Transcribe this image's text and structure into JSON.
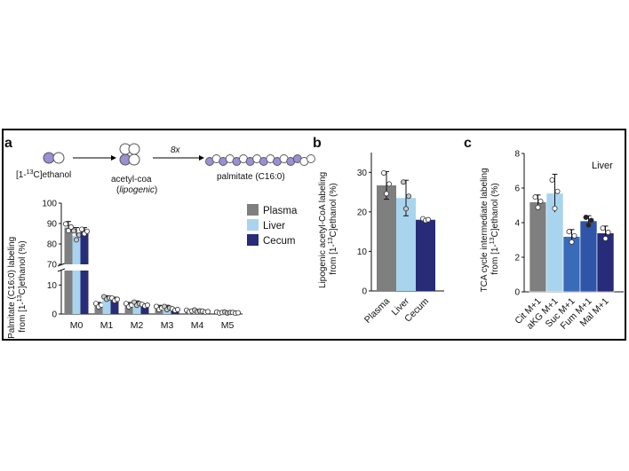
{
  "panel_labels": {
    "a": "a",
    "b": "b",
    "c": "c"
  },
  "colors": {
    "plasma": "#7f7f7f",
    "liver": "#a8d4ee",
    "cecum": "#272b78",
    "atom_labeled": "#9b8fd6"
  },
  "pathway": {
    "ethanol_label": "[1-",
    "ethanol_sup": "13",
    "ethanol_rest": "C]ethanol",
    "acetylcoa_label": "acetyl-coa",
    "acetylcoa_sub": "(lipogenic)",
    "factor_label": "8x",
    "palmitate_label": "palmitate (C16:0)"
  },
  "chart_data": [
    {
      "type": "bar",
      "ylabel_line1": "Palmitate (C16:0) labeling",
      "ylabel_line2_pre": "from [1-",
      "ylabel_line2_sup": "13",
      "ylabel_line2_post": "C]ethanol (%)",
      "categories": [
        "M0",
        "M1",
        "M2",
        "M3",
        "M4",
        "M5"
      ],
      "y_break": {
        "lower": [
          0,
          15
        ],
        "upper": [
          70,
          100
        ]
      },
      "yticks": [
        "0",
        "10",
        "70",
        "80",
        "90",
        "100"
      ],
      "legend_position": "right",
      "series": [
        {
          "name": "Plasma",
          "values": [
            88,
            3,
            3,
            2,
            1,
            0.5
          ],
          "err": [
            3,
            1,
            1,
            1,
            0.5,
            0.3
          ]
        },
        {
          "name": "Liver",
          "values": [
            84,
            5.5,
            3.5,
            2,
            1,
            0.5
          ],
          "err": [
            4,
            0.8,
            1,
            1,
            0.6,
            0.3
          ]
        },
        {
          "name": "Cecum",
          "values": [
            86,
            5,
            3,
            1.5,
            0.8,
            0.4
          ],
          "err": [
            2,
            0.8,
            0.5,
            0.5,
            0.3,
            0.2
          ]
        }
      ]
    },
    {
      "type": "bar",
      "ylabel_line1": "Lipogenic acetyl-CoA labeling",
      "ylabel_line2_pre": "from [1-",
      "ylabel_line2_sup": "13",
      "ylabel_line2_post": "C]ethanol (%)",
      "categories": [
        "Plasma",
        "Liver",
        "Cecum"
      ],
      "values": [
        26.7,
        23.5,
        18
      ],
      "err": [
        3.5,
        4.5,
        0.3
      ],
      "ylim": [
        0,
        35
      ],
      "yticks": [
        "0",
        "10",
        "20",
        "30"
      ]
    },
    {
      "type": "bar",
      "ylabel_line1": "TCA cycle intermediate labeling",
      "ylabel_line2_pre": "from [1-",
      "ylabel_line2_sup": "13",
      "ylabel_line2_post": "C]ethanol (%)",
      "annotation": "Liver",
      "categories": [
        "Cit M+1",
        "aKG M+1",
        "Suc M+1",
        "Fum M+1",
        "Mal M+1"
      ],
      "values": [
        5.2,
        5.7,
        3.2,
        4.1,
        3.4
      ],
      "err": [
        0.4,
        1.1,
        0.4,
        0.3,
        0.4
      ],
      "colors": [
        "#7f7f7f",
        "#a8d4ee",
        "#3a6bb8",
        "#2f55a8",
        "#272b78"
      ],
      "ylim": [
        0,
        8
      ],
      "yticks": [
        "0",
        "2",
        "4",
        "6",
        "8"
      ]
    }
  ]
}
